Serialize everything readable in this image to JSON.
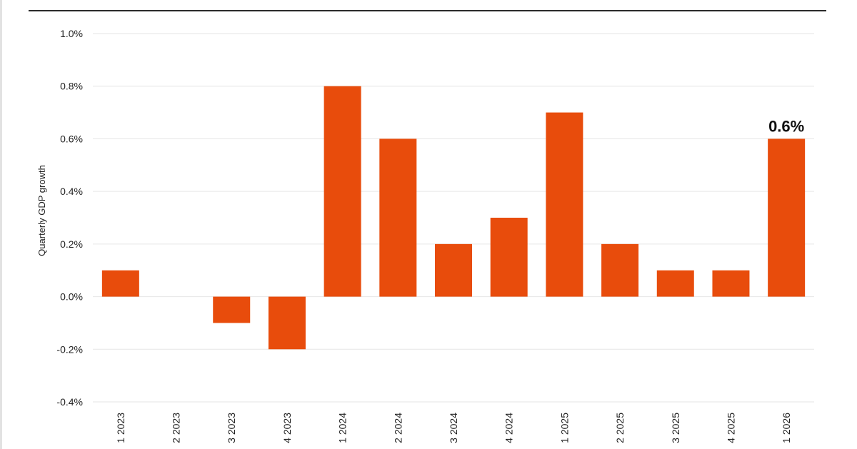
{
  "chart_data": {
    "type": "bar",
    "title": "",
    "xlabel": "",
    "ylabel": "Quarterly GDP growth",
    "categories": [
      "1 2023",
      "2 2023",
      "3 2023",
      "4 2023",
      "1 2024",
      "2 2024",
      "3 2024",
      "4 2024",
      "1 2025",
      "2 2025",
      "3 2025",
      "4 2025",
      "1 2026"
    ],
    "values": [
      0.1,
      0.0,
      -0.1,
      -0.2,
      0.8,
      0.6,
      0.2,
      0.3,
      0.7,
      0.2,
      0.1,
      0.1,
      0.6
    ],
    "ylim": [
      -0.4,
      1.0
    ],
    "yticks": [
      1.0,
      0.8,
      0.6,
      0.4,
      0.2,
      0.0,
      -0.2,
      -0.4
    ],
    "ytick_labels": [
      "1.0%",
      "0.8%",
      "0.6%",
      "0.4%",
      "0.2%",
      "0.0%",
      "-0.2%",
      "-0.4%"
    ],
    "grid": true,
    "bar_color": "#e84c0c",
    "annotations": [
      {
        "category": "1 2026",
        "text": "0.6%"
      }
    ]
  }
}
